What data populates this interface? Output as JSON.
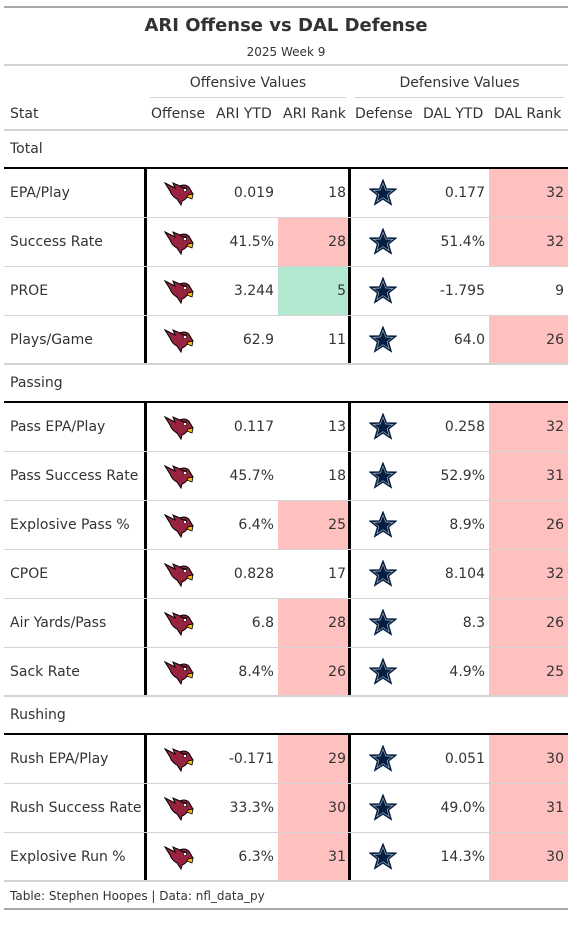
{
  "title": "ARI Offense vs DAL Defense",
  "subtitle": "2025 Week 9",
  "spanners": {
    "offense": "Offensive Values",
    "defense": "Defensive Values"
  },
  "columns": {
    "stat": "Stat",
    "offense": "Offense",
    "ari_ytd": "ARI YTD",
    "ari_rank": "ARI Rank",
    "defense": "Defense",
    "dal_ytd": "DAL YTD",
    "dal_rank": "DAL Rank"
  },
  "colors": {
    "bad": "#ffc0c0",
    "good": "#b3e9d0",
    "cardinals_red": "#97233f",
    "cowboys_navy": "#041e42"
  },
  "icons": {
    "offense": "arizona-cardinals-logo",
    "defense": "dallas-cowboys-star-logo"
  },
  "chart_data": {
    "type": "table",
    "groups": [
      {
        "name": "Total",
        "rows": [
          {
            "stat": "EPA/Play",
            "ari_ytd": "0.019",
            "ari_rank": "18",
            "dal_ytd": "0.177",
            "dal_rank": "32",
            "ari_fill": "",
            "dal_fill": "bad"
          },
          {
            "stat": "Success Rate",
            "ari_ytd": "41.5%",
            "ari_rank": "28",
            "dal_ytd": "51.4%",
            "dal_rank": "32",
            "ari_fill": "bad",
            "dal_fill": "bad"
          },
          {
            "stat": "PROE",
            "ari_ytd": "3.244",
            "ari_rank": "5",
            "dal_ytd": "-1.795",
            "dal_rank": "9",
            "ari_fill": "good",
            "dal_fill": ""
          },
          {
            "stat": "Plays/Game",
            "ari_ytd": "62.9",
            "ari_rank": "11",
            "dal_ytd": "64.0",
            "dal_rank": "26",
            "ari_fill": "",
            "dal_fill": "bad"
          }
        ]
      },
      {
        "name": "Passing",
        "rows": [
          {
            "stat": "Pass EPA/Play",
            "ari_ytd": "0.117",
            "ari_rank": "13",
            "dal_ytd": "0.258",
            "dal_rank": "32",
            "ari_fill": "",
            "dal_fill": "bad"
          },
          {
            "stat": "Pass Success Rate",
            "ari_ytd": "45.7%",
            "ari_rank": "18",
            "dal_ytd": "52.9%",
            "dal_rank": "31",
            "ari_fill": "",
            "dal_fill": "bad"
          },
          {
            "stat": "Explosive Pass %",
            "ari_ytd": "6.4%",
            "ari_rank": "25",
            "dal_ytd": "8.9%",
            "dal_rank": "26",
            "ari_fill": "bad",
            "dal_fill": "bad"
          },
          {
            "stat": "CPOE",
            "ari_ytd": "0.828",
            "ari_rank": "17",
            "dal_ytd": "8.104",
            "dal_rank": "32",
            "ari_fill": "",
            "dal_fill": "bad"
          },
          {
            "stat": "Air Yards/Pass",
            "ari_ytd": "6.8",
            "ari_rank": "28",
            "dal_ytd": "8.3",
            "dal_rank": "26",
            "ari_fill": "bad",
            "dal_fill": "bad"
          },
          {
            "stat": "Sack Rate",
            "ari_ytd": "8.4%",
            "ari_rank": "26",
            "dal_ytd": "4.9%",
            "dal_rank": "25",
            "ari_fill": "bad",
            "dal_fill": "bad"
          }
        ]
      },
      {
        "name": "Rushing",
        "rows": [
          {
            "stat": "Rush EPA/Play",
            "ari_ytd": "-0.171",
            "ari_rank": "29",
            "dal_ytd": "0.051",
            "dal_rank": "30",
            "ari_fill": "bad",
            "dal_fill": "bad"
          },
          {
            "stat": "Rush Success Rate",
            "ari_ytd": "33.3%",
            "ari_rank": "30",
            "dal_ytd": "49.0%",
            "dal_rank": "31",
            "ari_fill": "bad",
            "dal_fill": "bad"
          },
          {
            "stat": "Explosive Run %",
            "ari_ytd": "6.3%",
            "ari_rank": "31",
            "dal_ytd": "14.3%",
            "dal_rank": "30",
            "ari_fill": "bad",
            "dal_fill": "bad"
          }
        ]
      }
    ]
  },
  "footer": "Table: Stephen Hoopes | Data: nfl_data_py"
}
